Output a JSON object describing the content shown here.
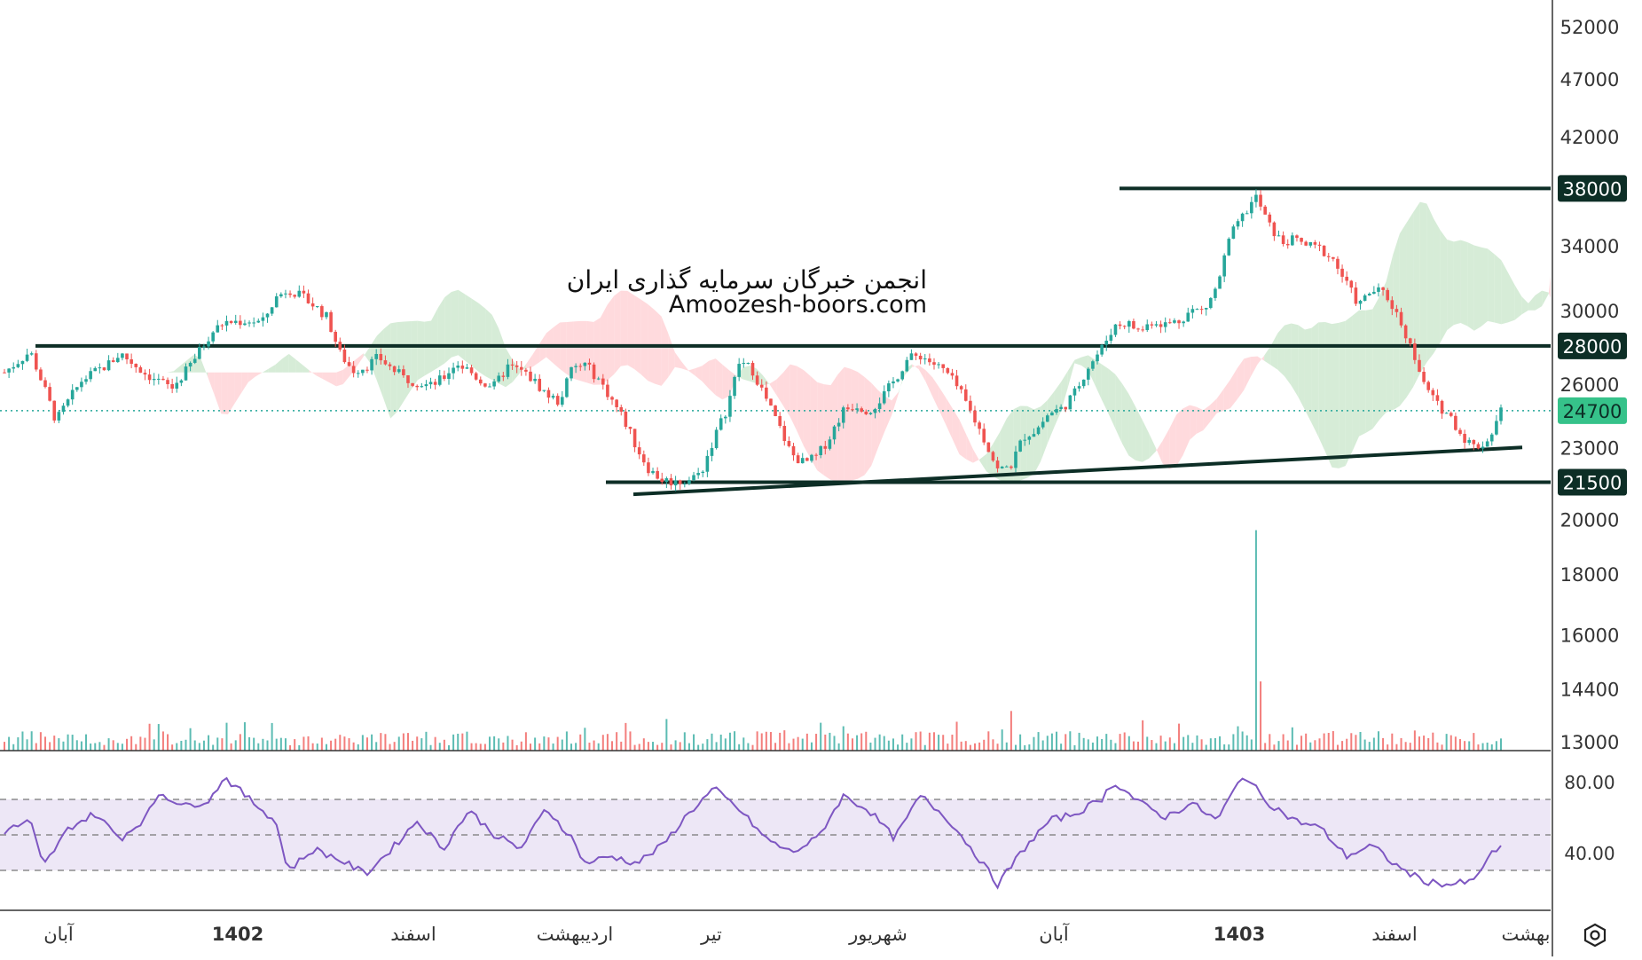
{
  "watermark": {
    "line1": "انجمن خبرگان سرمایه گذاری ایران",
    "line2": "Amoozesh-boors.com"
  },
  "price_axis_labels": [
    "52000",
    "47000",
    "42000",
    "34000",
    "30000",
    "26000",
    "23000",
    "20000",
    "18000",
    "16000",
    "14400",
    "13000"
  ],
  "highlighted_levels": [
    {
      "label": "38000",
      "value": 38000,
      "bg": "#0d2e26",
      "fg": "#ffffff"
    },
    {
      "label": "28000",
      "value": 28000,
      "bg": "#0d2e26",
      "fg": "#ffffff"
    },
    {
      "label": "24700",
      "value": 24700,
      "bg": "#36c28a",
      "fg": "#0d2e26"
    },
    {
      "label": "21500",
      "value": 21500,
      "bg": "#0d2e26",
      "fg": "#ffffff"
    }
  ],
  "rsi_axis_labels": [
    "80.00",
    "40.00"
  ],
  "time_axis_labels": [
    "آبان",
    "1402",
    "اسفند",
    "اردیبهشت",
    "تیر",
    "شهریور",
    "آبان",
    "1403",
    "اسفند",
    "بهشت"
  ],
  "colors": {
    "up": "#26a69a",
    "down": "#ef5350",
    "rsi_line": "#7e57c2",
    "rsi_band": "#ede7f6",
    "level_line": "#0d2e26",
    "current_price_line": "#26a69a",
    "cloud_green": "#c8e6c9",
    "cloud_red": "#ffcdd2"
  },
  "icons": {
    "chart_settings": "hexagon-settings-icon"
  },
  "chart_data": {
    "type": "candlestick",
    "price_scale": "log",
    "price_ticks": [
      52000,
      47000,
      42000,
      38000,
      34000,
      30000,
      28000,
      26000,
      24700,
      23000,
      21500,
      20000,
      18000,
      16000,
      14400,
      13000
    ],
    "current_price": 24700,
    "horizontal_levels": [
      38000,
      28000,
      21500
    ],
    "trendline": {
      "from_value": 21000,
      "to_value": 23000
    },
    "rsi": {
      "ticks": [
        80,
        40
      ],
      "band": [
        30,
        70
      ],
      "mid": 50
    },
    "time_labels": [
      "آبان",
      "1402",
      "اسفند",
      "اردیبهشت",
      "تیر",
      "شهریور",
      "آبان",
      "1403",
      "اسفند",
      "بهشت"
    ],
    "price_path": [
      [
        0,
        26600
      ],
      [
        2,
        27700
      ],
      [
        4,
        24200
      ],
      [
        6,
        26200
      ],
      [
        8,
        27000
      ],
      [
        9,
        27600
      ],
      [
        11,
        26500
      ],
      [
        13,
        25800
      ],
      [
        14,
        26600
      ],
      [
        15,
        27600
      ],
      [
        16,
        28700
      ],
      [
        17,
        29300
      ],
      [
        19,
        29400
      ],
      [
        20,
        29300
      ],
      [
        21,
        30700
      ],
      [
        22,
        31300
      ],
      [
        24,
        30300
      ],
      [
        25,
        29600
      ],
      [
        26,
        27600
      ],
      [
        27,
        26700
      ],
      [
        28,
        26900
      ],
      [
        29,
        27400
      ],
      [
        30,
        26800
      ],
      [
        31,
        26300
      ],
      [
        33,
        25900
      ],
      [
        34,
        26300
      ],
      [
        35,
        27100
      ],
      [
        36,
        26700
      ],
      [
        37,
        26100
      ],
      [
        38,
        25900
      ],
      [
        39,
        26900
      ],
      [
        40,
        26700
      ],
      [
        41,
        26200
      ],
      [
        42,
        25500
      ],
      [
        43,
        25100
      ],
      [
        44,
        26800
      ],
      [
        45,
        27000
      ],
      [
        46,
        26300
      ],
      [
        47,
        25300
      ],
      [
        48,
        24300
      ],
      [
        49,
        23000
      ],
      [
        50,
        22000
      ],
      [
        51,
        21600
      ],
      [
        52,
        21500
      ],
      [
        53,
        21600
      ],
      [
        54,
        21900
      ],
      [
        55,
        23400
      ],
      [
        56,
        24800
      ],
      [
        57,
        27200
      ],
      [
        58,
        26700
      ],
      [
        59,
        25300
      ],
      [
        60,
        24000
      ],
      [
        61,
        22700
      ],
      [
        62,
        22300
      ],
      [
        63,
        22600
      ],
      [
        64,
        23500
      ],
      [
        65,
        24700
      ],
      [
        66,
        25000
      ],
      [
        67,
        24700
      ],
      [
        68,
        25300
      ],
      [
        69,
        26200
      ],
      [
        70,
        27300
      ],
      [
        71,
        27500
      ],
      [
        73,
        26600
      ],
      [
        74,
        25700
      ],
      [
        75,
        24500
      ],
      [
        76,
        23300
      ],
      [
        77,
        22000
      ],
      [
        78,
        22200
      ],
      [
        79,
        23500
      ],
      [
        80,
        23800
      ],
      [
        81,
        24600
      ],
      [
        82,
        24800
      ],
      [
        83,
        25600
      ],
      [
        84,
        26900
      ],
      [
        85,
        27800
      ],
      [
        86,
        29100
      ],
      [
        87,
        29300
      ],
      [
        88,
        28800
      ],
      [
        89,
        29400
      ],
      [
        90,
        29200
      ],
      [
        91,
        29400
      ],
      [
        92,
        30000
      ],
      [
        93,
        30000
      ],
      [
        94,
        31400
      ],
      [
        95,
        34600
      ],
      [
        96,
        36000
      ],
      [
        97,
        37400
      ],
      [
        98,
        35400
      ],
      [
        99,
        34200
      ],
      [
        100,
        34400
      ],
      [
        101,
        34000
      ],
      [
        102,
        33800
      ],
      [
        103,
        33100
      ],
      [
        104,
        31600
      ],
      [
        105,
        30300
      ],
      [
        106,
        31200
      ],
      [
        107,
        31000
      ],
      [
        108,
        29700
      ],
      [
        109,
        28000
      ],
      [
        110,
        26000
      ],
      [
        111,
        25000
      ],
      [
        112,
        24500
      ],
      [
        113,
        23500
      ],
      [
        114,
        23000
      ],
      [
        115,
        23300
      ],
      [
        116,
        24700
      ]
    ],
    "volume_spike": {
      "bar_index": 97,
      "value": 20000
    },
    "rsi_path": [
      [
        0,
        52
      ],
      [
        2,
        58
      ],
      [
        3,
        32
      ],
      [
        5,
        54
      ],
      [
        7,
        62
      ],
      [
        9,
        48
      ],
      [
        11,
        60
      ],
      [
        12,
        74
      ],
      [
        14,
        66
      ],
      [
        16,
        70
      ],
      [
        17,
        83
      ],
      [
        19,
        70
      ],
      [
        21,
        58
      ],
      [
        22,
        30
      ],
      [
        24,
        42
      ],
      [
        26,
        36
      ],
      [
        28,
        28
      ],
      [
        30,
        42
      ],
      [
        32,
        58
      ],
      [
        34,
        42
      ],
      [
        36,
        64
      ],
      [
        38,
        50
      ],
      [
        40,
        42
      ],
      [
        42,
        65
      ],
      [
        44,
        48
      ],
      [
        45,
        34
      ],
      [
        47,
        38
      ],
      [
        49,
        34
      ],
      [
        51,
        44
      ],
      [
        53,
        62
      ],
      [
        55,
        76
      ],
      [
        57,
        64
      ],
      [
        59,
        48
      ],
      [
        61,
        40
      ],
      [
        63,
        48
      ],
      [
        65,
        72
      ],
      [
        67,
        64
      ],
      [
        69,
        48
      ],
      [
        71,
        72
      ],
      [
        73,
        60
      ],
      [
        75,
        42
      ],
      [
        77,
        22
      ],
      [
        79,
        42
      ],
      [
        81,
        58
      ],
      [
        83,
        62
      ],
      [
        85,
        70
      ],
      [
        86,
        80
      ],
      [
        88,
        68
      ],
      [
        90,
        60
      ],
      [
        92,
        68
      ],
      [
        94,
        58
      ],
      [
        96,
        84
      ],
      [
        98,
        68
      ],
      [
        100,
        58
      ],
      [
        102,
        54
      ],
      [
        104,
        38
      ],
      [
        106,
        44
      ],
      [
        108,
        32
      ],
      [
        110,
        24
      ],
      [
        112,
        22
      ],
      [
        114,
        24
      ],
      [
        115,
        38
      ],
      [
        116,
        42
      ]
    ]
  }
}
